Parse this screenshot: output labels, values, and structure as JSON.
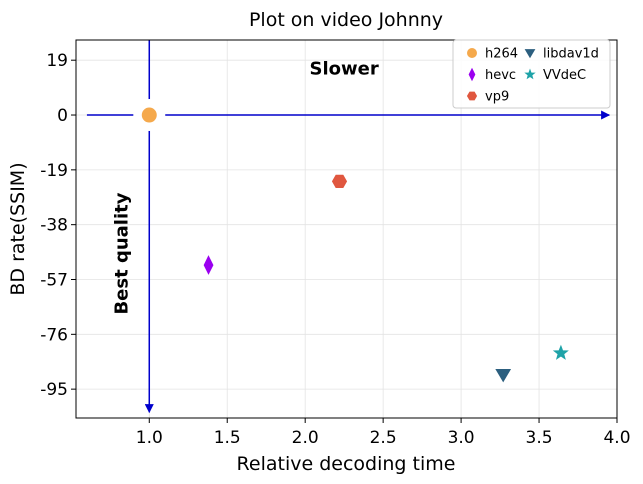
{
  "chart_data": {
    "type": "scatter",
    "title": "Plot on video Johnny",
    "xlabel": "Relative decoding time",
    "ylabel": "BD rate(SSIM)",
    "xlim": [
      0.53,
      4.0
    ],
    "ylim": [
      -105,
      26
    ],
    "xticks": [
      1.0,
      1.5,
      2.0,
      2.5,
      3.0,
      3.5,
      4.0
    ],
    "xtick_labels": [
      "1.0",
      "1.5",
      "2.0",
      "2.5",
      "3.0",
      "3.5",
      "4.0"
    ],
    "yticks": [
      19,
      0,
      -19,
      -38,
      -57,
      -76,
      -95
    ],
    "ytick_labels": [
      "19",
      "0",
      "-19",
      "-38",
      "-57",
      "-76",
      "-95"
    ],
    "grid": true,
    "legend_position": "top-right",
    "legend_columns": 2,
    "series": [
      {
        "name": "h264",
        "x": [
          1.0
        ],
        "y": [
          0.0
        ],
        "marker": "circle",
        "color": "#f5a94c"
      },
      {
        "name": "hevc",
        "x": [
          1.38
        ],
        "y": [
          -52.0
        ],
        "marker": "thin-diamond",
        "color": "#9b00f0"
      },
      {
        "name": "vp9",
        "x": [
          2.22
        ],
        "y": [
          -23.0
        ],
        "marker": "hexagon",
        "color": "#e0573f"
      },
      {
        "name": "libdav1d",
        "x": [
          3.27
        ],
        "y": [
          -90.0
        ],
        "marker": "triangle-down",
        "color": "#2c5f7f"
      },
      {
        "name": "VVdeC",
        "x": [
          3.64
        ],
        "y": [
          -82.5
        ],
        "marker": "star",
        "color": "#1fa3a8"
      }
    ],
    "annotations": [
      {
        "text": "Slower",
        "x": 2.25,
        "y": 14,
        "rotation": 0,
        "bold": true
      },
      {
        "text": "Best quality",
        "x": 0.86,
        "y": -48,
        "rotation": -90,
        "bold": true
      }
    ],
    "arrows": [
      {
        "from": [
          0.6,
          0.0
        ],
        "to": [
          3.95,
          0.0
        ],
        "color": "#0000cc"
      },
      {
        "from": [
          1.0,
          26.0
        ],
        "to": [
          1.0,
          -103.0
        ],
        "color": "#0000cc"
      }
    ]
  }
}
